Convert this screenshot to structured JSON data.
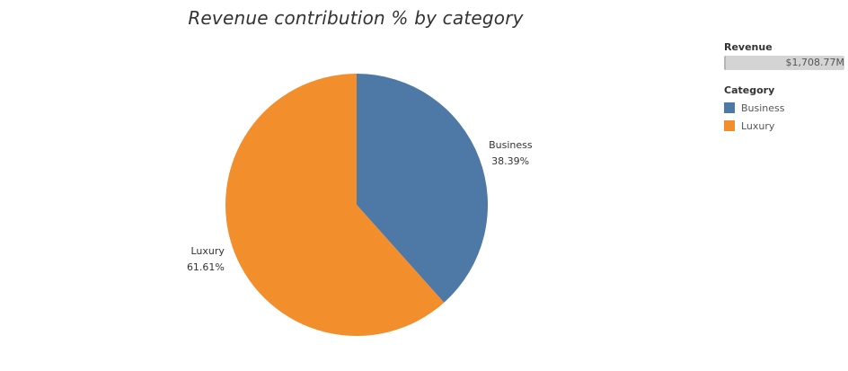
{
  "chart_data": {
    "type": "pie",
    "title": "Revenue contribution % by category",
    "slices": [
      {
        "label": "Business",
        "value": 38.39,
        "value_label": "38.39%",
        "color": "#4e79a7"
      },
      {
        "label": "Luxury",
        "value": 61.61,
        "value_label": "61.61%",
        "color": "#f28e2b"
      }
    ],
    "start_angle_deg": 0,
    "direction": "clockwise"
  },
  "legend": {
    "revenue": {
      "heading": "Revenue",
      "value": "$1,708.77M",
      "bar_color": "#d4d4d4"
    },
    "category": {
      "heading": "Category",
      "items": [
        {
          "label": "Business",
          "color": "#4e79a7"
        },
        {
          "label": "Luxury",
          "color": "#f28e2b"
        }
      ]
    }
  }
}
